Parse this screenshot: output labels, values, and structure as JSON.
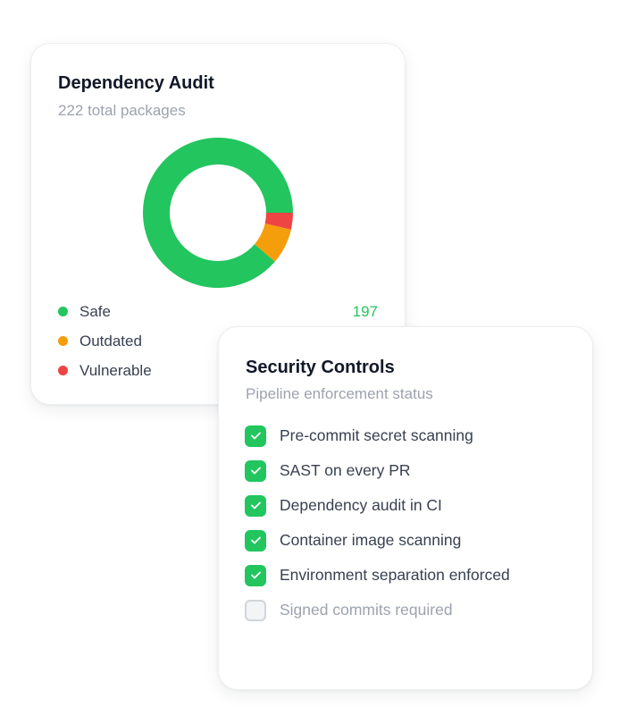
{
  "audit_card": {
    "title": "Dependency Audit",
    "subtitle": "222 total packages",
    "legend": [
      {
        "label": "Safe",
        "count": "197",
        "color": "#22c55e"
      },
      {
        "label": "Outdated",
        "count": "",
        "color": "#f59e0b"
      },
      {
        "label": "Vulnerable",
        "count": "",
        "color": "#ef4444"
      }
    ]
  },
  "chart_data": {
    "type": "pie",
    "style": "donut",
    "total": 222,
    "slices": [
      {
        "label": "Safe",
        "value": 197,
        "color": "#22c55e"
      },
      {
        "label": "Outdated",
        "value": 17,
        "color": "#f59e0b"
      },
      {
        "label": "Vulnerable",
        "value": 8,
        "color": "#ef4444"
      }
    ]
  },
  "controls_card": {
    "title": "Security Controls",
    "subtitle": "Pipeline enforcement status",
    "items": [
      {
        "label": "Pre-commit secret scanning",
        "checked": true
      },
      {
        "label": "SAST on every PR",
        "checked": true
      },
      {
        "label": "Dependency audit in CI",
        "checked": true
      },
      {
        "label": "Container image scanning",
        "checked": true
      },
      {
        "label": "Environment separation enforced",
        "checked": true
      },
      {
        "label": "Signed commits required",
        "checked": false
      }
    ]
  },
  "icons": {
    "check": "check-icon"
  },
  "colors": {
    "accent_green": "#22c55e",
    "warning_orange": "#f59e0b",
    "danger_red": "#ef4444",
    "title_text": "#111827",
    "muted_text": "#9ca3af"
  }
}
